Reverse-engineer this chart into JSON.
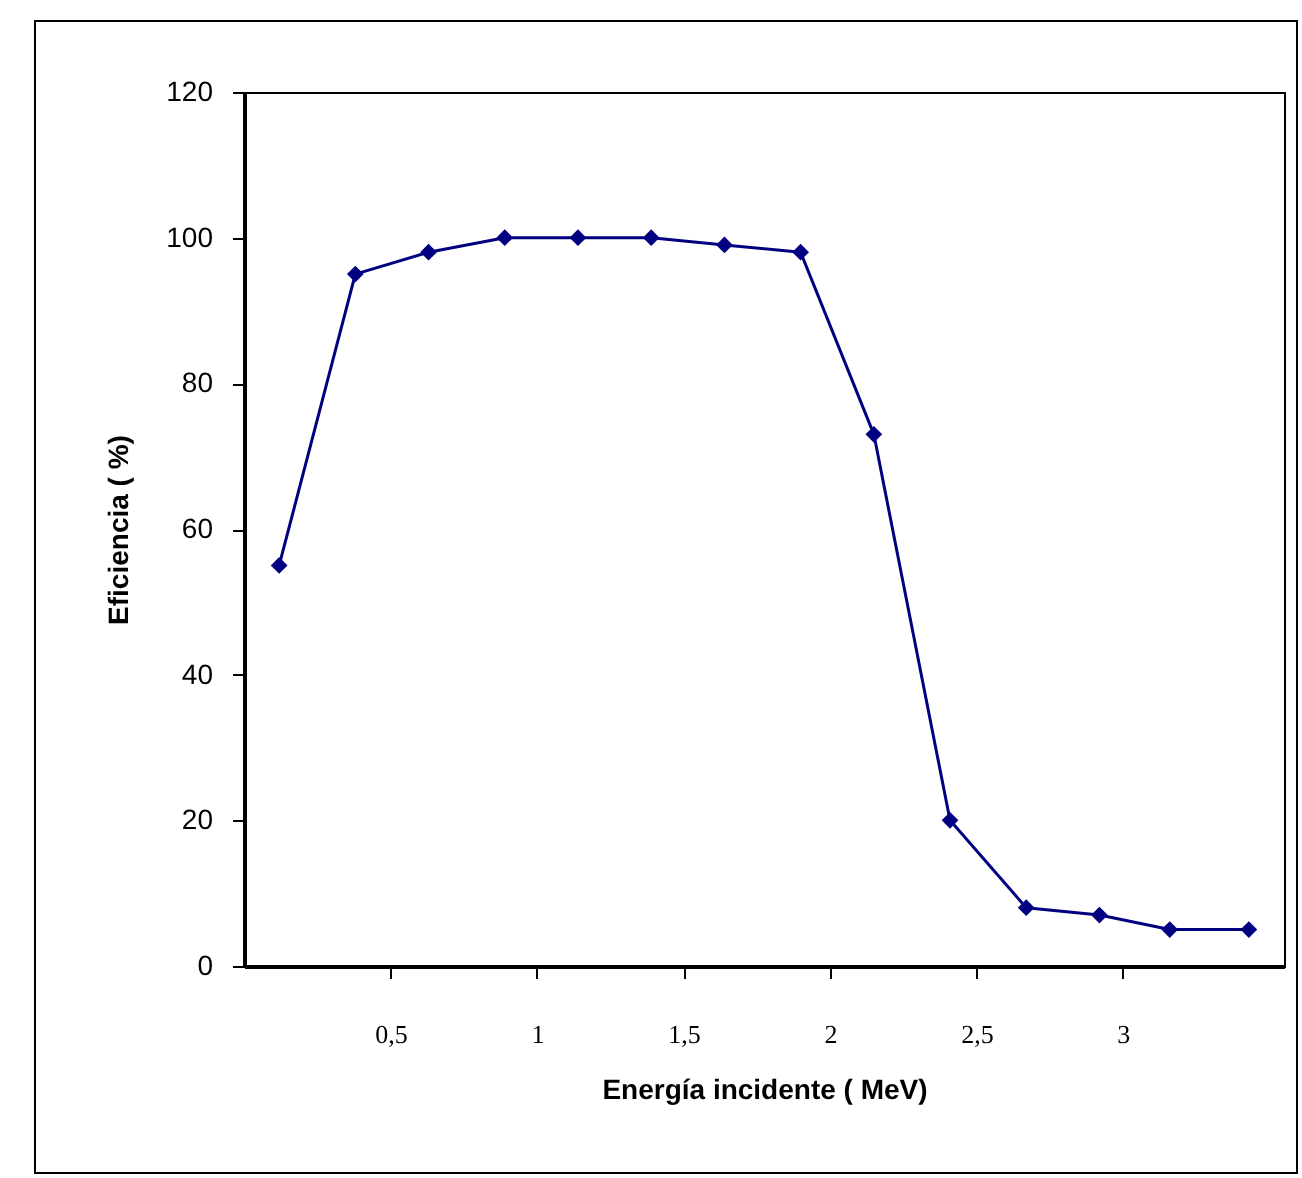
{
  "chart_data": {
    "type": "line",
    "xlabel": "Energía incidente ( MeV)",
    "ylabel": "Eficiencia ( %)",
    "x": [
      0.12,
      0.38,
      0.63,
      0.89,
      1.14,
      1.39,
      1.64,
      1.9,
      2.15,
      2.41,
      2.67,
      2.92,
      3.16,
      3.43
    ],
    "series": [
      {
        "color": "#000080",
        "values": [
          55,
          95,
          98,
          100,
          100,
          100,
          99,
          98,
          73,
          20,
          8,
          7,
          5,
          5
        ]
      }
    ],
    "xlim": [
      0,
      3.55
    ],
    "xticks": [
      {
        "value": 0.5,
        "label": "0,5"
      },
      1,
      {
        "value": 1.5,
        "label": "1,5"
      },
      2,
      {
        "value": 2.5,
        "label": "2,5"
      },
      3
    ],
    "ylim": [
      0,
      120
    ],
    "yticks": [
      0,
      20,
      40,
      60,
      80,
      100,
      120
    ],
    "grid": false,
    "marker": "diamond",
    "line_style": "solid"
  }
}
